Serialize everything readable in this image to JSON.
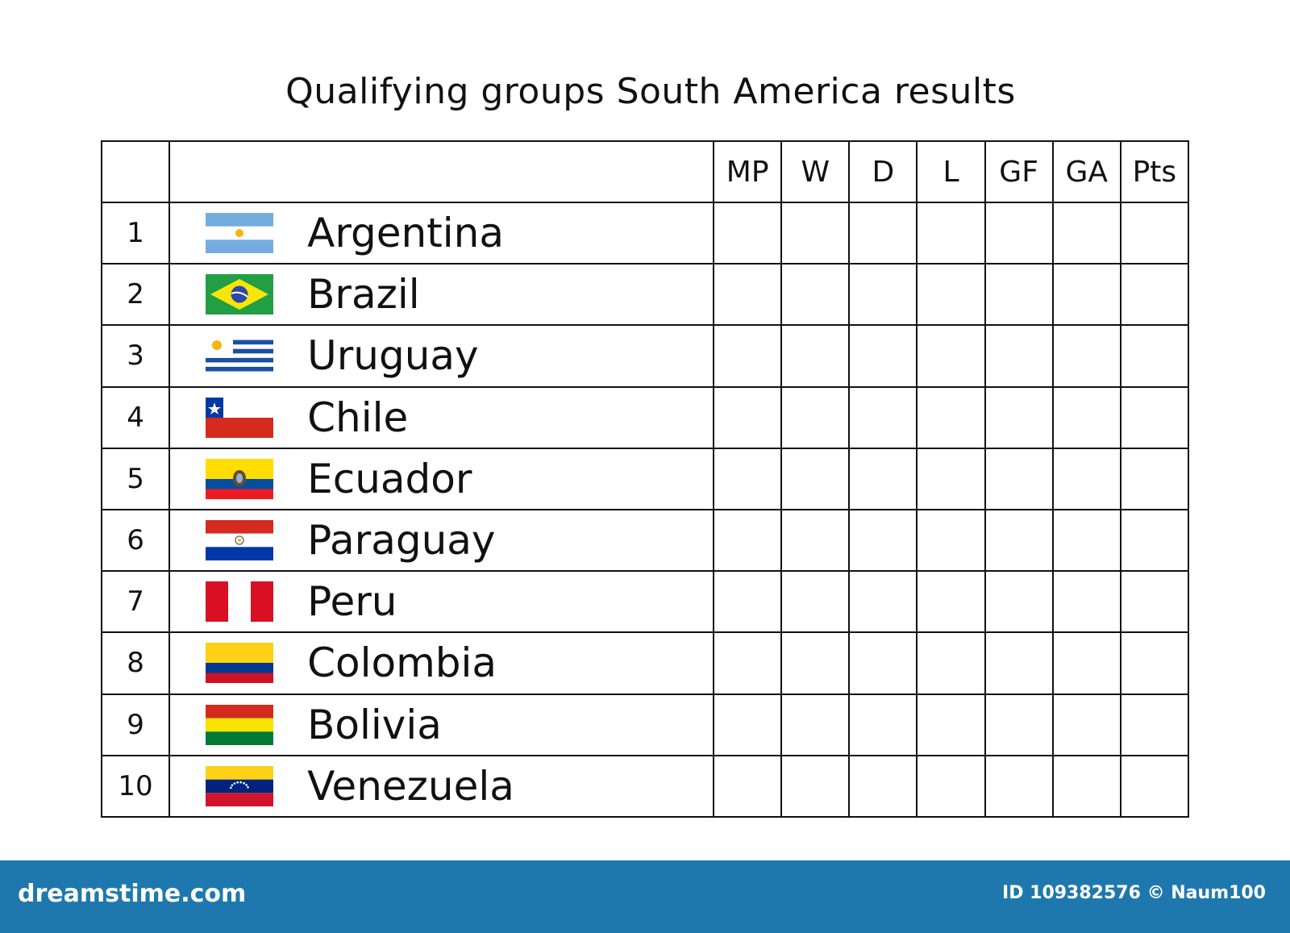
{
  "title": "Qualifying groups South America results",
  "columns": [
    "MP",
    "W",
    "D",
    "L",
    "GF",
    "GA",
    "Pts"
  ],
  "teams": [
    {
      "rank": "1",
      "name": "Argentina",
      "flag": "argentina-flag"
    },
    {
      "rank": "2",
      "name": "Brazil",
      "flag": "brazil-flag"
    },
    {
      "rank": "3",
      "name": "Uruguay",
      "flag": "uruguay-flag"
    },
    {
      "rank": "4",
      "name": "Chile",
      "flag": "chile-flag"
    },
    {
      "rank": "5",
      "name": "Ecuador",
      "flag": "ecuador-flag"
    },
    {
      "rank": "6",
      "name": "Paraguay",
      "flag": "paraguay-flag"
    },
    {
      "rank": "7",
      "name": "Peru",
      "flag": "peru-flag"
    },
    {
      "rank": "8",
      "name": "Colombia",
      "flag": "colombia-flag"
    },
    {
      "rank": "9",
      "name": "Bolivia",
      "flag": "bolivia-flag"
    },
    {
      "rank": "10",
      "name": "Venezuela",
      "flag": "venezuela-flag"
    }
  ],
  "footer": {
    "brand": "dreamstime.com",
    "credit": "ID 109382576 © Naum100",
    "color": "#1f78ad"
  }
}
